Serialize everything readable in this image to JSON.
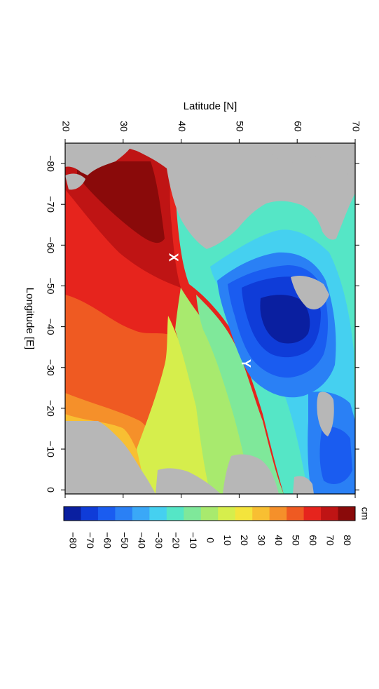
{
  "figure": {
    "x_axis_title": "Latitude [N]",
    "y_axis_title": "Longitude [E]",
    "lat_ticks": [
      "20",
      "30",
      "40",
      "50",
      "60",
      "70"
    ],
    "lon_ticks": [
      "−80",
      "−70",
      "−60",
      "−50",
      "−40",
      "−30",
      "−20",
      "−10",
      "0"
    ],
    "markers": [
      {
        "label": "X",
        "lat": 38.5,
        "lon": -57
      },
      {
        "label": "Y",
        "lat": 51,
        "lon": -31
      }
    ],
    "colorbar": {
      "unit": "cm",
      "tick_labels": [
        "−80",
        "−70",
        "−60",
        "−50",
        "−40",
        "−30",
        "−20",
        "−10",
        "0",
        "10",
        "20",
        "30",
        "40",
        "50",
        "60",
        "70",
        "80"
      ],
      "colors": [
        "#0a1fa0",
        "#0f3cd8",
        "#1a5cf0",
        "#2a80f5",
        "#3aa8f7",
        "#45d0f0",
        "#55e6c6",
        "#7fe89a",
        "#a8ea6e",
        "#d6ee4c",
        "#f4e43c",
        "#f8bf32",
        "#f5902a",
        "#ef5a22",
        "#e6241d",
        "#bf1414",
        "#8a0a0a"
      ]
    }
  },
  "colors": {
    "land": "#b7b7b7",
    "marker": "#ffffff"
  }
}
